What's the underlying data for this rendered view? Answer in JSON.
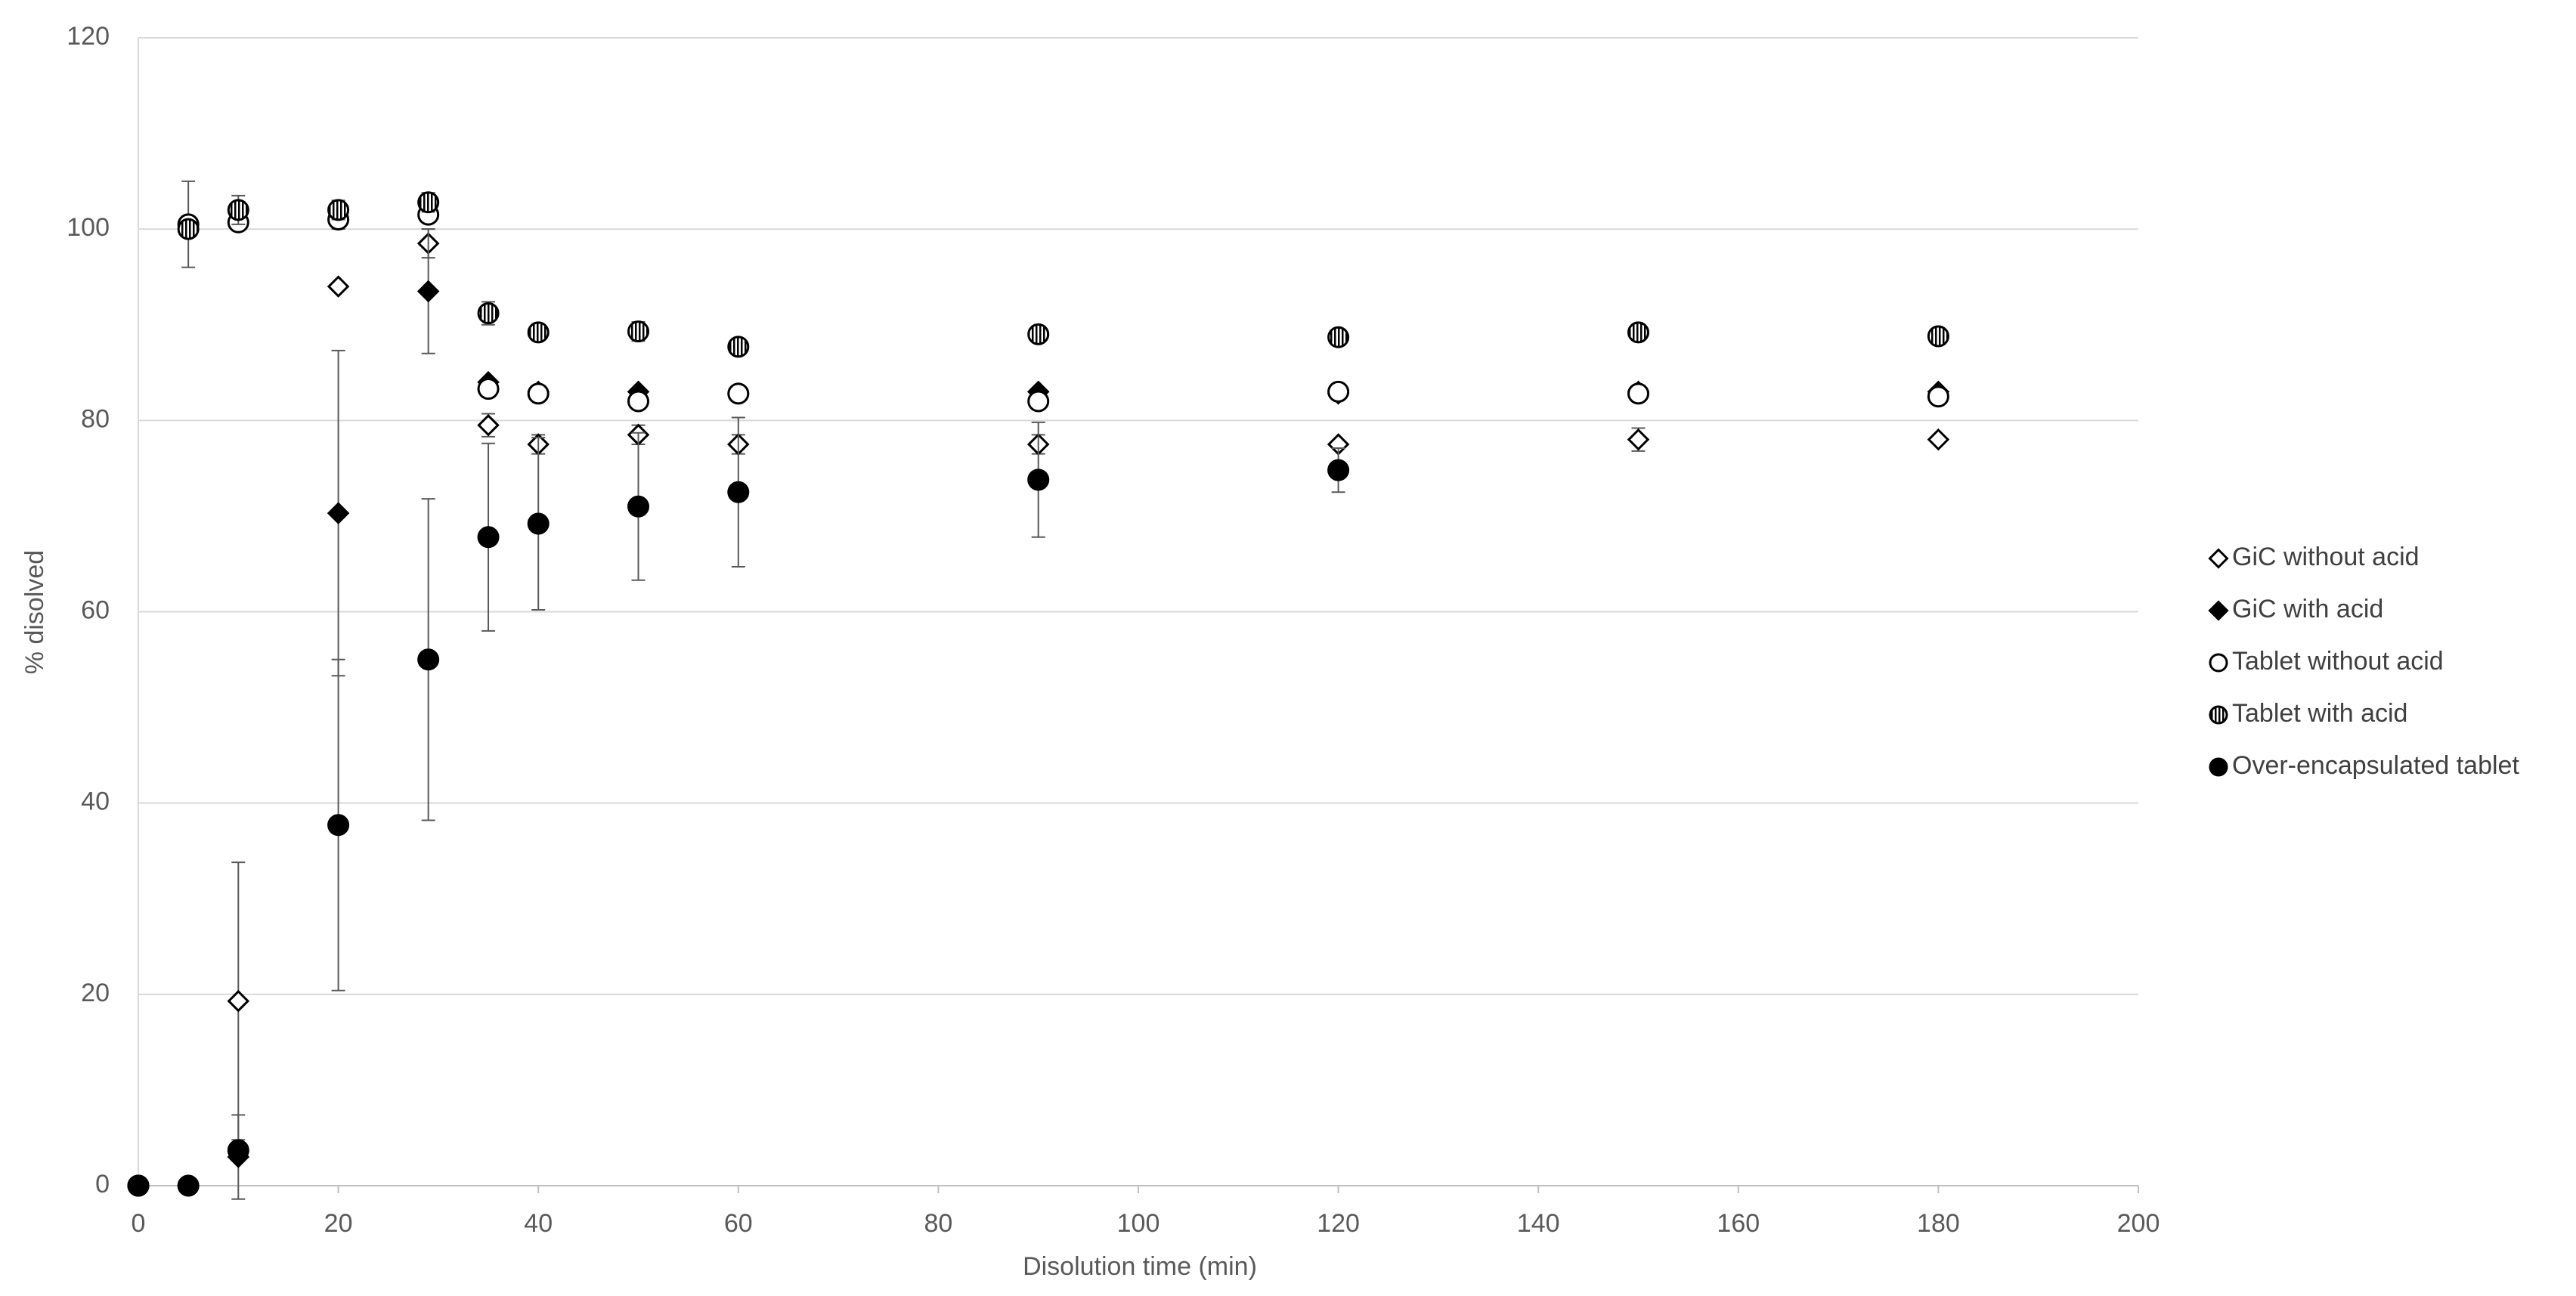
{
  "chart_data": {
    "type": "scatter",
    "x_label": "Disolution time (min)",
    "y_label": "% disolved",
    "x": [
      0,
      5,
      10,
      20,
      29,
      35,
      40,
      50,
      60,
      90,
      120,
      150,
      180
    ],
    "xlim": [
      0,
      200
    ],
    "xticks": [
      0,
      20,
      40,
      60,
      80,
      100,
      120,
      140,
      160,
      180,
      200
    ],
    "ylim": [
      0,
      120
    ],
    "yticks": [
      0,
      20,
      40,
      60,
      80,
      100,
      120
    ],
    "grid": true,
    "legend": "right",
    "series": [
      {
        "name": "GiC without acid",
        "marker": "diamond",
        "color": "#000000",
        "fill": "#ffffff",
        "values": [
          0,
          0,
          19.3,
          94,
          98.5,
          79.5,
          77.5,
          78.5,
          77.5,
          77.5,
          77.5,
          78,
          78
        ],
        "errors": [
          null,
          null,
          14.5,
          null,
          1.5,
          1.2,
          1,
          1,
          1,
          1,
          null,
          1.2,
          null
        ]
      },
      {
        "name": "GiC with acid",
        "marker": "diamond",
        "color": "#000000",
        "fill": "#000000",
        "values": [
          0,
          0,
          3,
          70.3,
          93.5,
          84,
          83,
          83,
          82.8,
          83,
          82.8,
          83,
          83
        ],
        "errors": [
          null,
          null,
          4.4,
          17,
          6.5,
          null,
          null,
          null,
          null,
          null,
          null,
          null,
          null
        ]
      },
      {
        "name": "Tablet without acid",
        "marker": "circle",
        "color": "#000000",
        "fill": "#ffffff",
        "values": [
          0,
          100.5,
          100.7,
          101,
          101.5,
          83.3,
          82.8,
          82,
          82.8,
          82,
          83,
          82.8,
          82.5
        ],
        "errors": [
          null,
          4.5,
          null,
          1,
          null,
          null,
          null,
          null,
          null,
          null,
          null,
          null,
          null
        ]
      },
      {
        "name": "Tablet with acid",
        "marker": "circle",
        "color": "#000000",
        "fill": "vertical-lines",
        "values": [
          0,
          100,
          102,
          102,
          102.8,
          91.2,
          89.2,
          89.3,
          87.7,
          89,
          88.7,
          89.2,
          88.8
        ],
        "errors": [
          null,
          null,
          1.5,
          1,
          1,
          1.2,
          null,
          1,
          null,
          null,
          null,
          null,
          null
        ]
      },
      {
        "name": "Over-encapsulated tablet",
        "marker": "circle",
        "color": "#000000",
        "fill": "#000000",
        "values": [
          0,
          0,
          3.7,
          37.7,
          55,
          67.8,
          69.2,
          71,
          72.5,
          73.8,
          74.8,
          null,
          null
        ],
        "errors": [
          null,
          null,
          0.8,
          17.3,
          16.8,
          9.8,
          9,
          7.7,
          7.8,
          6,
          2.3,
          null,
          null
        ]
      }
    ]
  }
}
